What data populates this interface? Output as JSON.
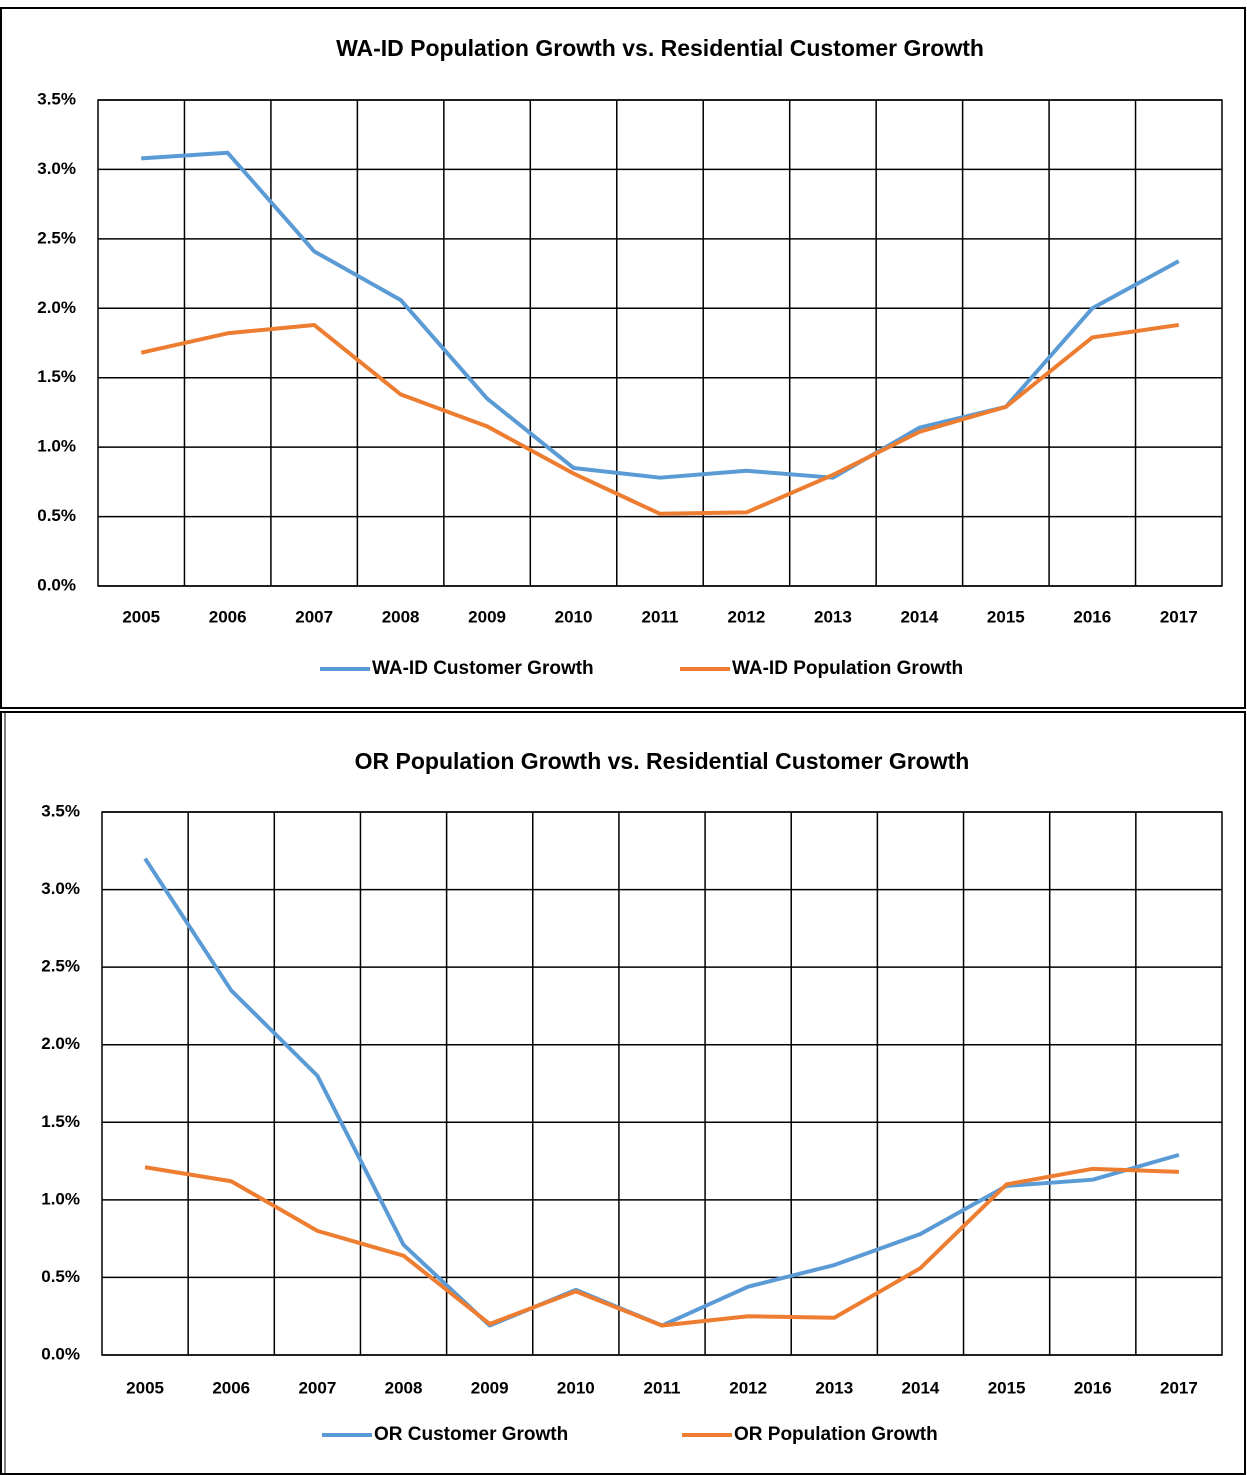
{
  "chart_data": [
    {
      "type": "line",
      "title": "WA-ID Population Growth vs. Residential Customer Growth",
      "categories": [
        "2005",
        "2006",
        "2007",
        "2008",
        "2009",
        "2010",
        "2011",
        "2012",
        "2013",
        "2014",
        "2015",
        "2016",
        "2017"
      ],
      "series": [
        {
          "name": "WA-ID Customer Growth",
          "color": "#5b9bd5",
          "values": [
            3.08,
            3.12,
            2.41,
            2.06,
            1.35,
            0.85,
            0.78,
            0.83,
            0.78,
            1.14,
            1.29,
            2.0,
            2.34
          ]
        },
        {
          "name": "WA-ID Population Growth",
          "color": "#ed7d31",
          "values": [
            1.68,
            1.82,
            1.88,
            1.38,
            1.15,
            0.81,
            0.52,
            0.53,
            0.8,
            1.11,
            1.29,
            1.79,
            1.88
          ]
        }
      ],
      "ylim": [
        0,
        3.5
      ],
      "yticks": [
        {
          "value": 0,
          "label": "0.0%"
        },
        {
          "value": 0.5,
          "label": "0.5%"
        },
        {
          "value": 1,
          "label": "1.0%"
        },
        {
          "value": 1.5,
          "label": "1.5%"
        },
        {
          "value": 2,
          "label": "2.0%"
        },
        {
          "value": 2.5,
          "label": "2.5%"
        },
        {
          "value": 3,
          "label": "3.0%"
        },
        {
          "value": 3.5,
          "label": "3.5%"
        }
      ],
      "grid": true,
      "legend": "bottom"
    },
    {
      "type": "line",
      "title": "OR Population Growth vs. Residential Customer Growth",
      "categories": [
        "2005",
        "2006",
        "2007",
        "2008",
        "2009",
        "2010",
        "2011",
        "2012",
        "2013",
        "2014",
        "2015",
        "2016",
        "2017"
      ],
      "series": [
        {
          "name": "OR Customer Growth",
          "color": "#5b9bd5",
          "values": [
            3.2,
            2.35,
            1.8,
            0.71,
            0.19,
            0.42,
            0.19,
            0.44,
            0.58,
            0.78,
            1.09,
            1.13,
            1.29
          ]
        },
        {
          "name": "OR Population Growth",
          "color": "#ed7d31",
          "values": [
            1.21,
            1.12,
            0.8,
            0.64,
            0.2,
            0.41,
            0.19,
            0.25,
            0.24,
            0.56,
            1.1,
            1.2,
            1.18
          ]
        }
      ],
      "ylim": [
        0,
        3.5
      ],
      "yticks": [
        {
          "value": 0,
          "label": "0.0%"
        },
        {
          "value": 0.5,
          "label": "0.5%"
        },
        {
          "value": 1,
          "label": "1.0%"
        },
        {
          "value": 1.5,
          "label": "1.5%"
        },
        {
          "value": 2,
          "label": "2.0%"
        },
        {
          "value": 2.5,
          "label": "2.5%"
        },
        {
          "value": 3,
          "label": "3.0%"
        },
        {
          "value": 3.5,
          "label": "3.5%"
        }
      ],
      "grid": true,
      "legend": "bottom"
    }
  ]
}
